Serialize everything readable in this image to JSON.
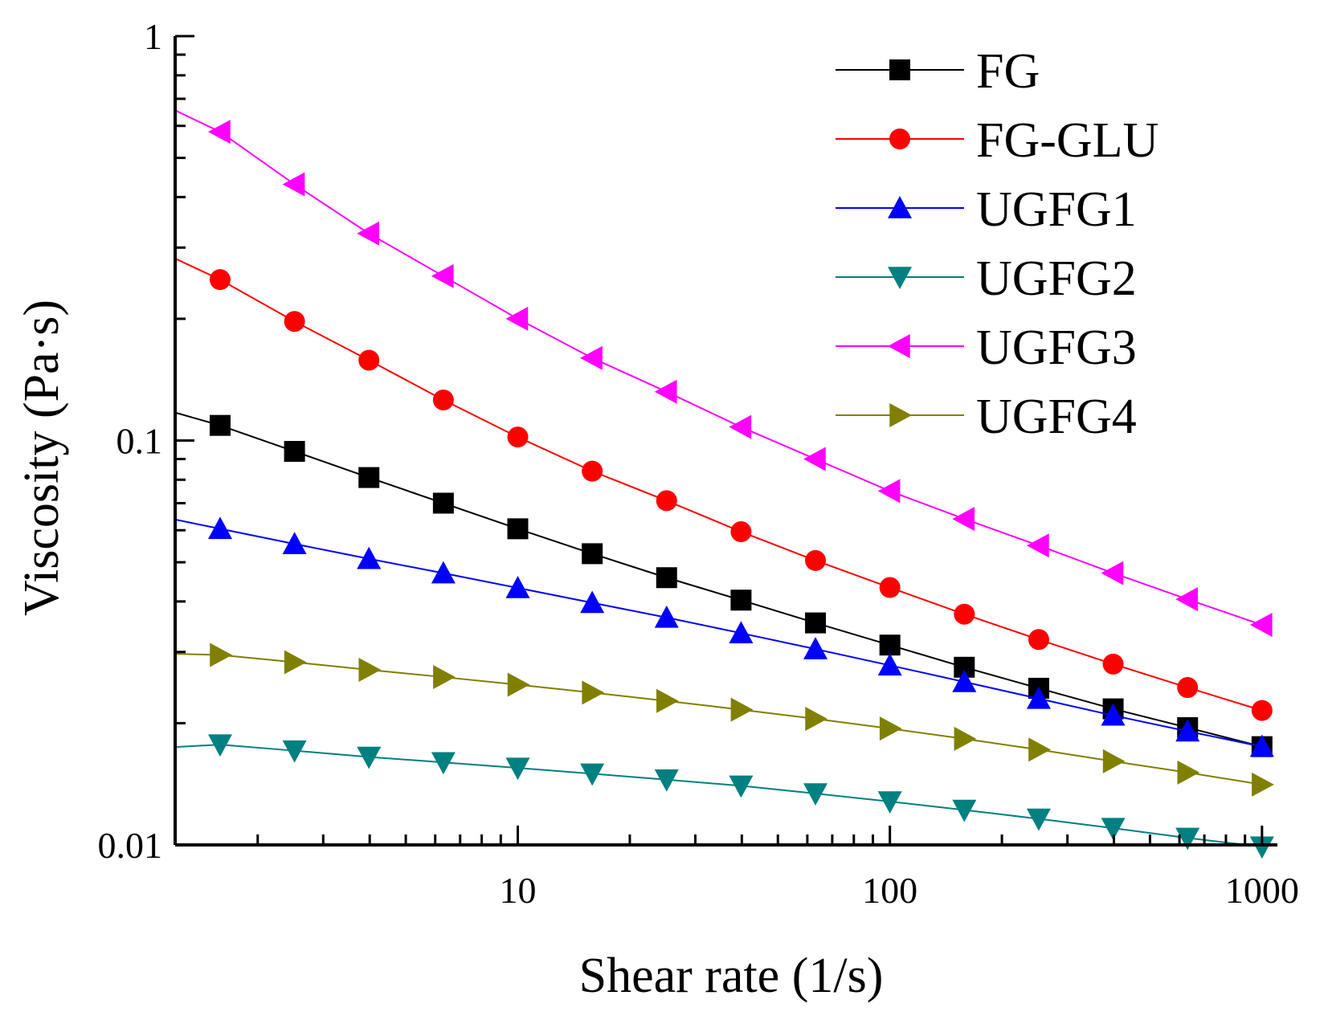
{
  "chart_data": {
    "type": "line",
    "title": "",
    "xlabel": "Shear rate (1/s)",
    "ylabel": "Viscosity (Pa·s)",
    "xscale": "log",
    "yscale": "log",
    "xlim": [
      1.2,
      1100
    ],
    "ylim": [
      0.01,
      1
    ],
    "x_ticks": [
      {
        "value": 10,
        "label": "10"
      },
      {
        "value": 100,
        "label": "100"
      },
      {
        "value": 1000,
        "label": "1000"
      }
    ],
    "y_ticks": [
      {
        "value": 0.01,
        "label": "0.01"
      },
      {
        "value": 0.1,
        "label": "0.1"
      },
      {
        "value": 1,
        "label": "1"
      }
    ],
    "legend_position": "top-right",
    "x": [
      1.585,
      2.512,
      3.981,
      6.31,
      10,
      15.85,
      25.12,
      39.81,
      63.1,
      100,
      158.5,
      251.2,
      398.1,
      631,
      1000
    ],
    "series": [
      {
        "name": "FG",
        "marker": "square",
        "color": "#000000",
        "line_start": [
          1.0,
          0.123
        ],
        "values": [
          0.109,
          0.094,
          0.081,
          0.07,
          0.0605,
          0.0525,
          0.0458,
          0.0403,
          0.0354,
          0.0312,
          0.0275,
          0.0244,
          0.0217,
          0.0195,
          0.0175
        ]
      },
      {
        "name": "FG-GLU",
        "marker": "circle",
        "color": "#ff0000",
        "line_start": [
          1.0,
          0.305
        ],
        "values": [
          0.25,
          0.197,
          0.158,
          0.126,
          0.102,
          0.084,
          0.071,
          0.0595,
          0.0505,
          0.0433,
          0.0372,
          0.0322,
          0.028,
          0.0245,
          0.0215
        ]
      },
      {
        "name": "UGFG1",
        "marker": "triangle-up",
        "color": "#0000ff",
        "line_start": [
          1.0,
          0.066
        ],
        "values": [
          0.0605,
          0.0555,
          0.051,
          0.047,
          0.0432,
          0.0397,
          0.0365,
          0.0334,
          0.0305,
          0.0278,
          0.0253,
          0.023,
          0.0209,
          0.0191,
          0.0175
        ]
      },
      {
        "name": "UGFG2",
        "marker": "triangle-down",
        "color": "#008080",
        "line_start": [
          1.0,
          0.0173
        ],
        "values": [
          0.0177,
          0.0171,
          0.0165,
          0.016,
          0.0155,
          0.015,
          0.0145,
          0.014,
          0.0134,
          0.0128,
          0.0122,
          0.0116,
          0.011,
          0.0104,
          0.0099
        ]
      },
      {
        "name": "UGFG3",
        "marker": "triangle-left",
        "color": "#ff00ff",
        "line_start": [
          1.0,
          0.71
        ],
        "values": [
          0.58,
          0.43,
          0.325,
          0.255,
          0.2,
          0.16,
          0.132,
          0.108,
          0.09,
          0.075,
          0.064,
          0.055,
          0.047,
          0.0405,
          0.035
        ]
      },
      {
        "name": "UGFG4",
        "marker": "triangle-right",
        "color": "#808000",
        "line_start": [
          1.0,
          0.0298
        ],
        "values": [
          0.0295,
          0.0283,
          0.0271,
          0.026,
          0.0249,
          0.0238,
          0.0227,
          0.0216,
          0.0205,
          0.0194,
          0.0183,
          0.0172,
          0.0161,
          0.0151,
          0.0141
        ]
      }
    ]
  }
}
